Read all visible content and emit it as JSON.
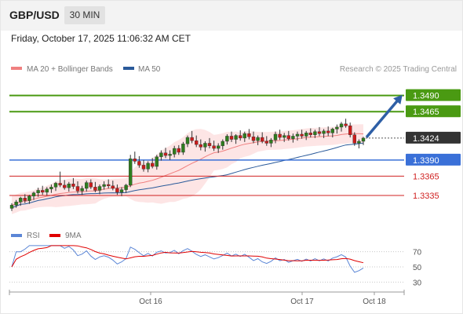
{
  "header": {
    "symbol": "GBP/USD",
    "timeframe": "30 MIN",
    "datetime": "Friday, October 17, 2025 11:06:32 AM CET"
  },
  "legend": {
    "ma20_label": "MA 20 + Bollinger Bands",
    "ma50_label": "MA 50",
    "ma20_color": "#f08080",
    "ma50_color": "#2a5a9a",
    "research_note": "Research © 2025 Trading Central"
  },
  "rsi_legend": {
    "rsi_label": "RSI",
    "ma_label": "9MA",
    "rsi_color": "#5b86d6",
    "ma_color": "#e00000"
  },
  "chart_data": {
    "type": "candlestick",
    "price_range": [
      1.329,
      1.352
    ],
    "current_price": "1.3424",
    "levels": [
      {
        "value": 1.349,
        "label": "1.3490",
        "kind": "resistance",
        "color": "#4a9a12"
      },
      {
        "value": 1.3465,
        "label": "1.3465",
        "kind": "resistance",
        "color": "#4a9a12"
      },
      {
        "value": 1.339,
        "label": "1.3390",
        "kind": "pivot",
        "color": "#3a70d8"
      },
      {
        "value": 1.3365,
        "label": "1.3365",
        "kind": "support",
        "color": "#d02020"
      },
      {
        "value": 1.3335,
        "label": "1.3335",
        "kind": "support",
        "color": "#d02020"
      }
    ],
    "arrow": {
      "from": 1.3424,
      "to": 1.349,
      "direction": "up"
    },
    "x_labels": [
      "Oct 16",
      "Oct 17",
      "Oct 18"
    ],
    "rsi_levels": [
      "70",
      "50",
      "30"
    ],
    "rsi_range": [
      20,
      80
    ],
    "candles": [
      [
        1.3315,
        1.3323,
        1.3311,
        1.332
      ],
      [
        1.332,
        1.3328,
        1.3316,
        1.3325
      ],
      [
        1.3325,
        1.3333,
        1.3319,
        1.3331
      ],
      [
        1.3331,
        1.3337,
        1.3323,
        1.3327
      ],
      [
        1.3327,
        1.3336,
        1.3322,
        1.3334
      ],
      [
        1.3334,
        1.3341,
        1.3328,
        1.3339
      ],
      [
        1.3339,
        1.3347,
        1.3333,
        1.3343
      ],
      [
        1.3343,
        1.335,
        1.3336,
        1.334
      ],
      [
        1.334,
        1.3348,
        1.3335,
        1.3345
      ],
      [
        1.3345,
        1.3352,
        1.3339,
        1.3348
      ],
      [
        1.3348,
        1.3356,
        1.3342,
        1.3354
      ],
      [
        1.3354,
        1.3372,
        1.3348,
        1.3351
      ],
      [
        1.3351,
        1.3359,
        1.3344,
        1.3347
      ],
      [
        1.3347,
        1.3356,
        1.3341,
        1.3353
      ],
      [
        1.3353,
        1.3362,
        1.3345,
        1.3349
      ],
      [
        1.3349,
        1.3357,
        1.3338,
        1.3342
      ],
      [
        1.3342,
        1.335,
        1.3336,
        1.3346
      ],
      [
        1.3346,
        1.3358,
        1.3341,
        1.3355
      ],
      [
        1.3355,
        1.336,
        1.3345,
        1.3348
      ],
      [
        1.3348,
        1.3356,
        1.334,
        1.3343
      ],
      [
        1.3343,
        1.3352,
        1.3337,
        1.3349
      ],
      [
        1.3349,
        1.3357,
        1.3344,
        1.3352
      ],
      [
        1.3352,
        1.336,
        1.3346,
        1.335
      ],
      [
        1.335,
        1.3358,
        1.3343,
        1.3346
      ],
      [
        1.3346,
        1.3352,
        1.3336,
        1.334
      ],
      [
        1.334,
        1.3348,
        1.3334,
        1.3344
      ],
      [
        1.3344,
        1.3353,
        1.3339,
        1.3351
      ],
      [
        1.3351,
        1.3398,
        1.3348,
        1.3392
      ],
      [
        1.3392,
        1.3403,
        1.3384,
        1.3388
      ],
      [
        1.3388,
        1.3396,
        1.3378,
        1.3382
      ],
      [
        1.3382,
        1.339,
        1.3372,
        1.3376
      ],
      [
        1.3376,
        1.3388,
        1.3371,
        1.3385
      ],
      [
        1.3385,
        1.3393,
        1.3377,
        1.338
      ],
      [
        1.338,
        1.3398,
        1.3375,
        1.3395
      ],
      [
        1.3395,
        1.3405,
        1.3389,
        1.3401
      ],
      [
        1.3401,
        1.3409,
        1.3393,
        1.3397
      ],
      [
        1.3397,
        1.3405,
        1.339,
        1.3399
      ],
      [
        1.3399,
        1.3412,
        1.3394,
        1.3408
      ],
      [
        1.3408,
        1.3413,
        1.3398,
        1.3402
      ],
      [
        1.3402,
        1.3418,
        1.3398,
        1.3415
      ],
      [
        1.3415,
        1.3428,
        1.341,
        1.3425
      ],
      [
        1.3425,
        1.3435,
        1.3416,
        1.342
      ],
      [
        1.342,
        1.3428,
        1.341,
        1.3414
      ],
      [
        1.3414,
        1.3422,
        1.3405,
        1.341
      ],
      [
        1.341,
        1.3419,
        1.3403,
        1.3416
      ],
      [
        1.3416,
        1.3424,
        1.3408,
        1.3412
      ],
      [
        1.3412,
        1.342,
        1.3404,
        1.3408
      ],
      [
        1.3408,
        1.3416,
        1.3401,
        1.3412
      ],
      [
        1.3412,
        1.3422,
        1.3406,
        1.3419
      ],
      [
        1.3419,
        1.343,
        1.3414,
        1.3427
      ],
      [
        1.3427,
        1.3434,
        1.3418,
        1.3422
      ],
      [
        1.3422,
        1.343,
        1.3415,
        1.3428
      ],
      [
        1.3428,
        1.3436,
        1.342,
        1.3424
      ],
      [
        1.3424,
        1.3434,
        1.3418,
        1.3431
      ],
      [
        1.3431,
        1.3438,
        1.3422,
        1.3426
      ],
      [
        1.3426,
        1.3434,
        1.3416,
        1.342
      ],
      [
        1.342,
        1.3428,
        1.3413,
        1.3425
      ],
      [
        1.3425,
        1.3433,
        1.3416,
        1.3419
      ],
      [
        1.3419,
        1.3427,
        1.3412,
        1.3416
      ],
      [
        1.3416,
        1.3424,
        1.341,
        1.3421
      ],
      [
        1.3421,
        1.3434,
        1.3416,
        1.343
      ],
      [
        1.343,
        1.3437,
        1.3421,
        1.3425
      ],
      [
        1.3425,
        1.3432,
        1.3418,
        1.3428
      ],
      [
        1.3428,
        1.3435,
        1.342,
        1.3423
      ],
      [
        1.3423,
        1.3431,
        1.3417,
        1.3427
      ],
      [
        1.3427,
        1.3434,
        1.342,
        1.343
      ],
      [
        1.343,
        1.3437,
        1.3423,
        1.3427
      ],
      [
        1.3427,
        1.3435,
        1.3421,
        1.3432
      ],
      [
        1.3432,
        1.3439,
        1.3425,
        1.3429
      ],
      [
        1.3429,
        1.3437,
        1.3424,
        1.3434
      ],
      [
        1.3434,
        1.3441,
        1.3427,
        1.3431
      ],
      [
        1.3431,
        1.3438,
        1.3424,
        1.3435
      ],
      [
        1.3435,
        1.3442,
        1.3427,
        1.3432
      ],
      [
        1.3432,
        1.344,
        1.3425,
        1.3438
      ],
      [
        1.3438,
        1.3445,
        1.3431,
        1.3441
      ],
      [
        1.3441,
        1.3449,
        1.3434,
        1.3446
      ],
      [
        1.3446,
        1.3454,
        1.344,
        1.3443
      ],
      [
        1.3443,
        1.3448,
        1.3425,
        1.3429
      ],
      [
        1.3429,
        1.3433,
        1.3412,
        1.3416
      ],
      [
        1.3416,
        1.3422,
        1.3408,
        1.3419
      ],
      [
        1.3419,
        1.3426,
        1.3413,
        1.3424
      ]
    ]
  }
}
